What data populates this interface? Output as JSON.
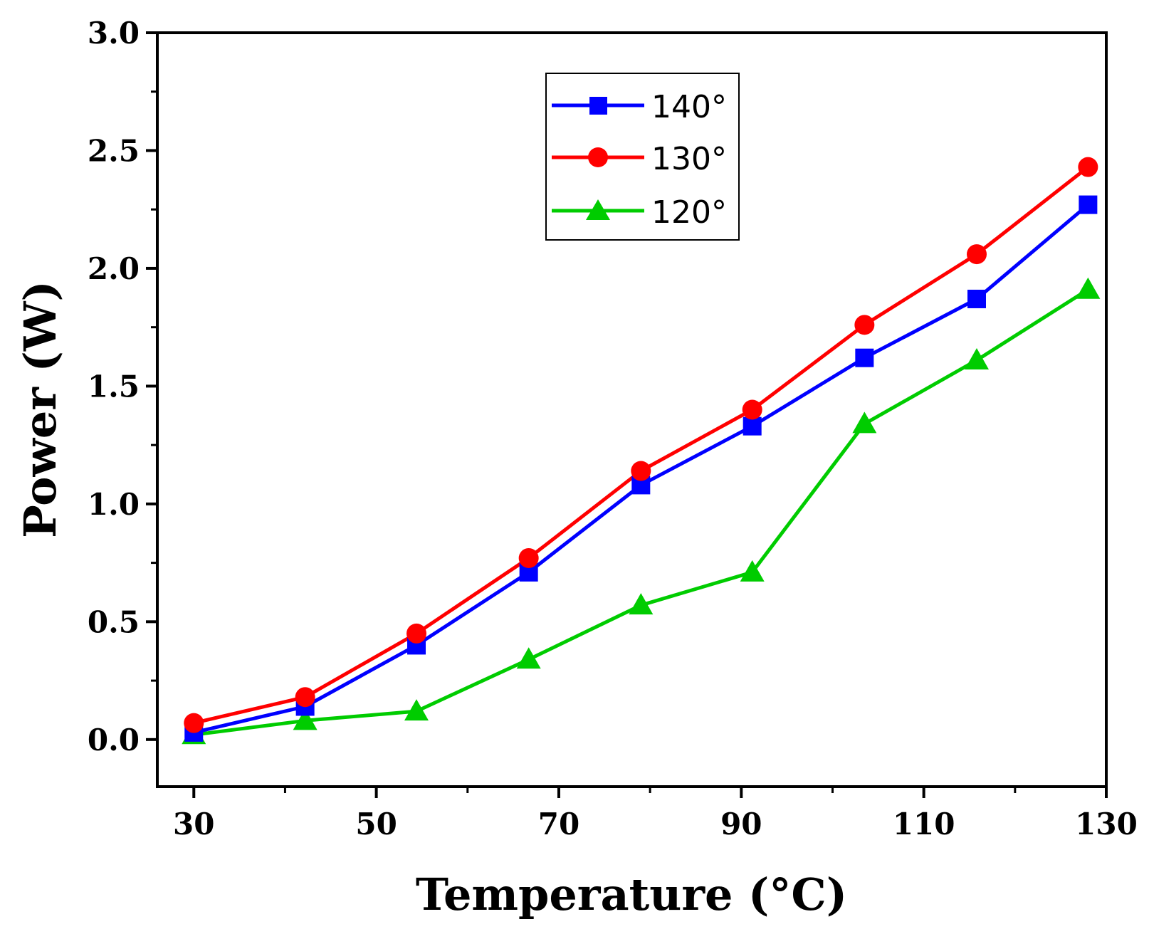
{
  "chart_data": {
    "type": "line",
    "title": "",
    "xlabel": "Temperature (°C)",
    "ylabel": "Power (W)",
    "xlim": [
      26,
      130
    ],
    "ylim": [
      -0.2,
      3.0
    ],
    "x_ticks": [
      30,
      50,
      70,
      90,
      110,
      130
    ],
    "x_tick_labels": [
      "30",
      "50",
      "70",
      "90",
      "110",
      "130"
    ],
    "x_minor_ticks": [
      40,
      60,
      80,
      100,
      120
    ],
    "y_ticks": [
      0.0,
      0.5,
      1.0,
      1.5,
      2.0,
      2.5,
      3.0
    ],
    "y_tick_labels": [
      "0.0",
      "0.5",
      "1.0",
      "1.5",
      "2.0",
      "2.5",
      "3.0"
    ],
    "y_minor_ticks": [
      0.25,
      0.75,
      1.25,
      1.75,
      2.25,
      2.75
    ],
    "grid": false,
    "legend_position": "top-center",
    "x": [
      30,
      42.2,
      54.4,
      66.7,
      79.0,
      91.2,
      103.5,
      115.8,
      128.0
    ],
    "series": [
      {
        "name": "140°",
        "color": "#0000ff",
        "marker": "square",
        "values": [
          0.03,
          0.14,
          0.4,
          0.71,
          1.08,
          1.33,
          1.62,
          1.87,
          2.27
        ]
      },
      {
        "name": "130°",
        "color": "#ff0000",
        "marker": "circle",
        "values": [
          0.07,
          0.18,
          0.45,
          0.77,
          1.14,
          1.4,
          1.76,
          2.06,
          2.43
        ]
      },
      {
        "name": "120°",
        "color": "#00cc00",
        "marker": "triangle",
        "values": [
          0.02,
          0.08,
          0.12,
          0.34,
          0.57,
          0.71,
          1.34,
          1.61,
          1.91
        ]
      }
    ]
  }
}
